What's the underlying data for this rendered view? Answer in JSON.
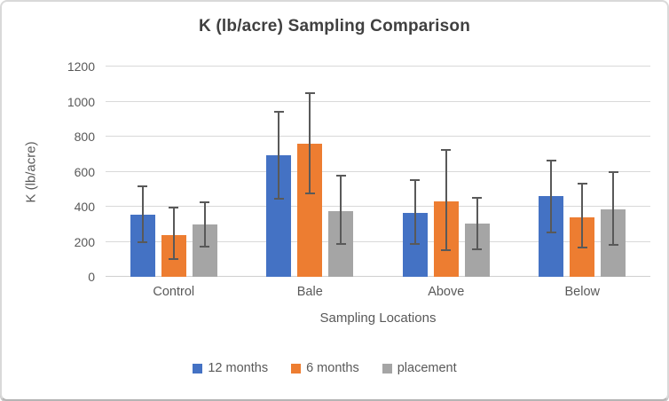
{
  "chart_data": {
    "type": "bar",
    "title": "K (lb/acre) Sampling Comparison",
    "xlabel": "Sampling Locations",
    "ylabel": "K (lb/acre)",
    "ylim": [
      0,
      1200
    ],
    "ytick_step": 200,
    "grid": true,
    "legend_position": "bottom",
    "categories": [
      "Control",
      "Bale",
      "Above",
      "Below"
    ],
    "series": [
      {
        "name": "12 months",
        "color": "#4472C4",
        "values": [
          355,
          695,
          365,
          460
        ],
        "error_low": [
          190,
          440,
          180,
          250
        ],
        "error_high": [
          520,
          945,
          555,
          670
        ]
      },
      {
        "name": "6 months",
        "color": "#ED7D31",
        "values": [
          240,
          760,
          430,
          340
        ],
        "error_low": [
          95,
          470,
          145,
          160
        ],
        "error_high": [
          400,
          1055,
          730,
          535
        ]
      },
      {
        "name": "placement",
        "color": "#A5A5A5",
        "values": [
          300,
          375,
          305,
          385
        ],
        "error_low": [
          165,
          180,
          150,
          175
        ],
        "error_high": [
          430,
          580,
          455,
          605
        ]
      }
    ],
    "colors": {
      "gridline": "#d9d9d9",
      "error_bar": "#595959",
      "axis_text": "#595959",
      "title_text": "#404040"
    }
  }
}
